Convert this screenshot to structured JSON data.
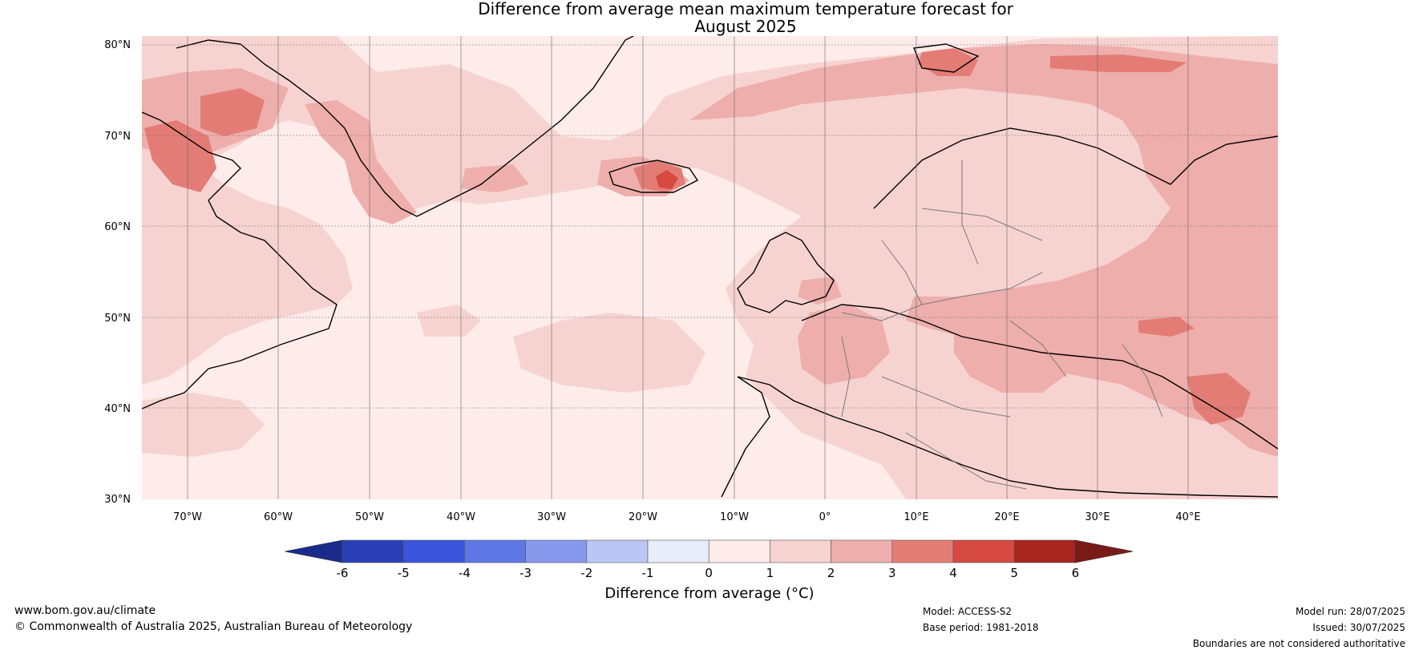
{
  "title_line1": "Difference from average mean maximum temperature forecast for",
  "title_line2": "August 2025",
  "lat_labels": [
    "80°N",
    "70°N",
    "60°N",
    "50°N",
    "40°N",
    "30°N"
  ],
  "lon_labels": [
    "70°W",
    "60°W",
    "50°W",
    "40°W",
    "30°W",
    "20°W",
    "10°W",
    "0°",
    "10°E",
    "20°E",
    "30°E",
    "40°E"
  ],
  "colorbar": {
    "title": "Difference from average (°C)",
    "ticks": [
      "-6",
      "-5",
      "-4",
      "-3",
      "-2",
      "-1",
      "0",
      "1",
      "2",
      "3",
      "4",
      "5",
      "6"
    ],
    "colors": [
      "#1b2b8c",
      "#2a3fb5",
      "#3a55dc",
      "#5d77e6",
      "#8799ec",
      "#bcc6f4",
      "#e9ecfb",
      "#fdecea",
      "#f6d3d1",
      "#eeaeab",
      "#e47c76",
      "#d64a41",
      "#a6261f",
      "#7a1a16"
    ]
  },
  "footer": {
    "website": "www.bom.gov.au/climate",
    "copyright": "© Commonwealth of Australia 2025, Australian Bureau of Meteorology",
    "model": "Model: ACCESS-S2",
    "base_period": "Base period: 1981-2018",
    "model_run": "Model run: 28/07/2025",
    "issued": "Issued: 30/07/2025",
    "boundaries": "Boundaries are not considered authoritative"
  }
}
